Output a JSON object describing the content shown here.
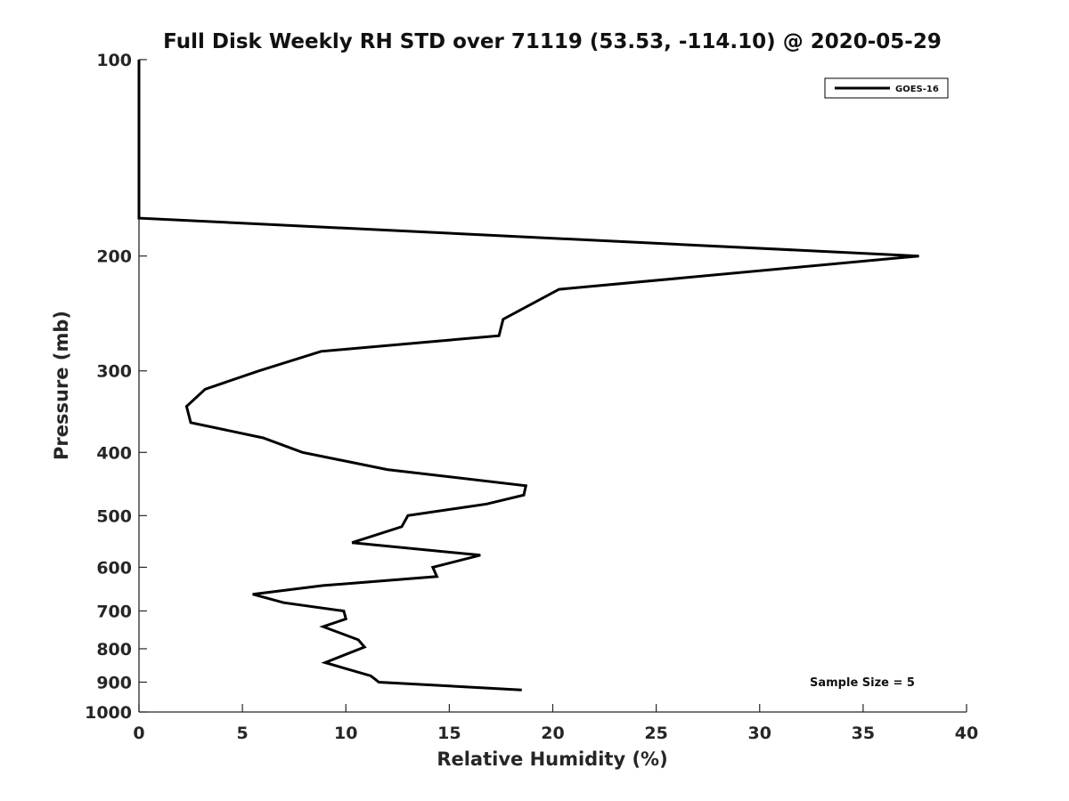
{
  "chart_data": {
    "type": "line",
    "title": "Full Disk Weekly RH STD over 71119 (53.53, -114.10) @ 2020-05-29",
    "xlabel": "Relative Humidity (%)",
    "ylabel": "Pressure (mb)",
    "xlim": [
      0,
      40
    ],
    "ylim": [
      100,
      1000
    ],
    "yscale": "log",
    "ydirection": "reversed",
    "xticks": [
      0,
      5,
      10,
      15,
      20,
      25,
      30,
      35,
      40
    ],
    "xtick_labels": [
      "0",
      "5",
      "10",
      "15",
      "20",
      "25",
      "30",
      "35",
      "40"
    ],
    "yticks": [
      100,
      200,
      300,
      400,
      500,
      600,
      700,
      800,
      900,
      1000
    ],
    "ytick_labels": [
      "100",
      "200",
      "300",
      "400",
      "500",
      "600",
      "700",
      "800",
      "900",
      "1000"
    ],
    "grid": false,
    "legend_position": "top-right",
    "series": [
      {
        "name": "GOES-16",
        "color": "#000000",
        "points": [
          [
            0.0,
            100
          ],
          [
            0.0,
            125
          ],
          [
            0.0,
            150
          ],
          [
            0.0,
            175
          ],
          [
            37.7,
            200
          ],
          [
            20.3,
            225
          ],
          [
            17.6,
            250
          ],
          [
            17.4,
            265
          ],
          [
            8.8,
            280
          ],
          [
            5.8,
            300
          ],
          [
            3.2,
            320
          ],
          [
            2.3,
            340
          ],
          [
            2.5,
            360
          ],
          [
            6.0,
            380
          ],
          [
            7.9,
            400
          ],
          [
            12.0,
            425
          ],
          [
            18.7,
            450
          ],
          [
            18.6,
            465
          ],
          [
            16.8,
            480
          ],
          [
            13.0,
            500
          ],
          [
            12.7,
            520
          ],
          [
            10.3,
            550
          ],
          [
            16.5,
            575
          ],
          [
            14.2,
            600
          ],
          [
            14.4,
            620
          ],
          [
            8.9,
            640
          ],
          [
            5.5,
            660
          ],
          [
            7.0,
            680
          ],
          [
            9.9,
            700
          ],
          [
            10.0,
            720
          ],
          [
            8.9,
            740
          ],
          [
            10.6,
            775
          ],
          [
            10.9,
            795
          ],
          [
            9.0,
            840
          ],
          [
            11.2,
            880
          ],
          [
            11.6,
            900
          ],
          [
            18.5,
            925
          ]
        ]
      }
    ],
    "annotations": [
      "Sample Size = 5"
    ]
  }
}
